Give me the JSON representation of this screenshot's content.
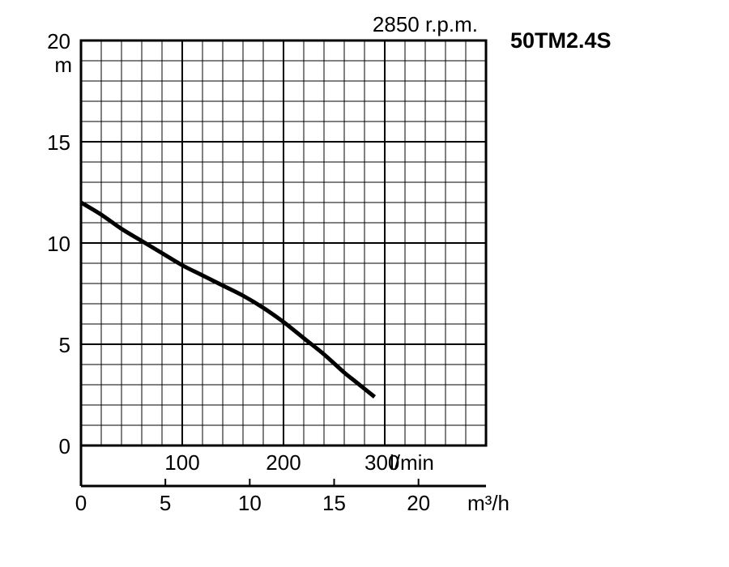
{
  "chart_data": {
    "type": "line",
    "title": "50TM2.4S",
    "speed_label": "2850 r.p.m.",
    "ylabel": "m",
    "ylim": [
      0,
      20
    ],
    "y_ticks": [
      0,
      5,
      10,
      15,
      20
    ],
    "lpm_axis": {
      "unit_label": "l/min",
      "lim": [
        0,
        400
      ],
      "ticks": [
        100,
        200,
        300
      ]
    },
    "m3h_axis": {
      "unit_label": "m³/h",
      "lim": [
        0,
        24
      ],
      "ticks": [
        0,
        5,
        10,
        15,
        20
      ]
    },
    "grid": true,
    "series": [
      {
        "x_lpm": [
          0,
          20,
          40,
          60,
          80,
          100,
          120,
          140,
          160,
          180,
          200,
          220,
          240,
          260,
          270,
          290
        ],
        "y_m": [
          12.0,
          11.4,
          10.7,
          10.1,
          9.5,
          8.9,
          8.4,
          7.9,
          7.4,
          6.8,
          6.1,
          5.3,
          4.5,
          3.6,
          3.2,
          2.4
        ]
      }
    ],
    "colors": {
      "line": "#000000",
      "grid": "#000000",
      "background": "#ffffff"
    }
  }
}
